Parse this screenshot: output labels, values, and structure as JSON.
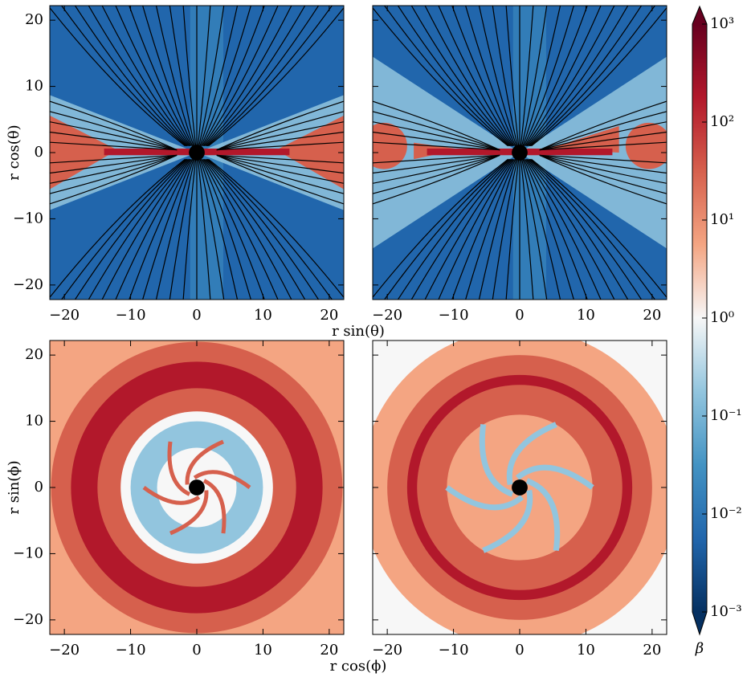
{
  "chart_data": [
    {
      "type": "heatmap",
      "xlim": [
        -22.2,
        22.2
      ],
      "ylim": [
        -22.2,
        22.2
      ],
      "xticks": [
        {
          "value": -20,
          "label": "−20"
        },
        {
          "value": -10,
          "label": "−10"
        },
        0,
        10,
        20
      ],
      "yticks": [
        {
          "value": -20,
          "label": "−20"
        },
        {
          "value": -10,
          "label": "−10"
        },
        0,
        10,
        20
      ],
      "show_yticklabels": true,
      "xlabel": "r sin(θ)",
      "ylabel": "r cos(θ)"
    },
    {
      "type": "heatmap",
      "xlim": [
        -22.2,
        22.2
      ],
      "ylim": [
        -22.2,
        22.2
      ],
      "xticks": [
        {
          "value": -20,
          "label": "−20"
        },
        {
          "value": -10,
          "label": "−10"
        },
        0,
        10,
        20
      ],
      "yticks": [
        -20,
        -10,
        0,
        10,
        20
      ],
      "show_yticklabels": false
    },
    {
      "type": "heatmap",
      "xlim": [
        -22.2,
        22.2
      ],
      "ylim": [
        -22.2,
        22.2
      ],
      "xticks": [
        {
          "value": -20,
          "label": "−20"
        },
        {
          "value": -10,
          "label": "−10"
        },
        0,
        10,
        20
      ],
      "yticks": [
        {
          "value": -20,
          "label": "−20"
        },
        {
          "value": -10,
          "label": "−10"
        },
        0,
        10,
        20
      ],
      "show_yticklabels": true,
      "xlabel": "r cos(ϕ)",
      "ylabel": "r sin(ϕ)"
    },
    {
      "type": "heatmap",
      "xlim": [
        -22.2,
        22.2
      ],
      "ylim": [
        -22.2,
        22.2
      ],
      "xticks": [
        {
          "value": -20,
          "label": "−20"
        },
        {
          "value": -10,
          "label": "−10"
        },
        0,
        10,
        20
      ],
      "yticks": [
        -20,
        -10,
        0,
        10,
        20
      ],
      "show_yticklabels": false
    },
    {
      "type": "colorbar",
      "label": "β",
      "log": true,
      "ylim": [
        0.001,
        1000
      ],
      "yticks": [
        {
          "value": 0.001,
          "label": "10⁻³"
        },
        {
          "value": 0.01,
          "label": "10⁻²"
        },
        {
          "value": 0.1,
          "label": "10⁻¹"
        },
        {
          "value": 1,
          "label": "10⁰"
        },
        {
          "value": 10,
          "label": "10¹"
        },
        {
          "value": 100,
          "label": "10²"
        },
        {
          "value": 1000,
          "label": "10³"
        }
      ],
      "colormap": [
        "#053061",
        "#2166ac",
        "#4393c3",
        "#92c5de",
        "#f7f7f7",
        "#f4a582",
        "#d6604d",
        "#b2182b",
        "#67001f"
      ]
    }
  ]
}
